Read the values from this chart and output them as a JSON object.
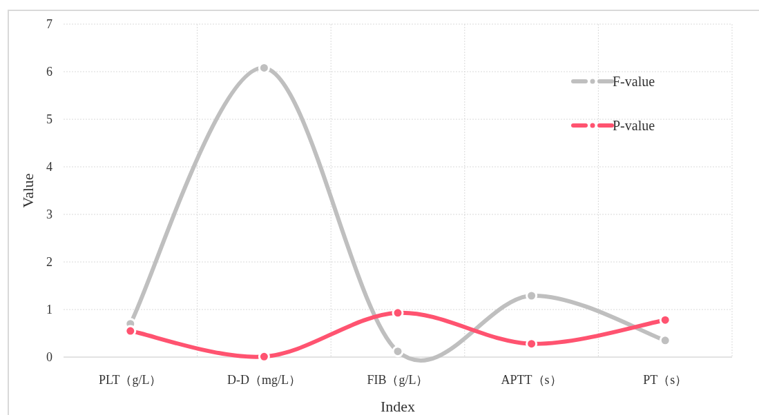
{
  "chart_data": {
    "type": "line",
    "xlabel": "Index",
    "ylabel": "Value",
    "categories": [
      "PLT（g/L）",
      "D-D（mg/L）",
      "FIB（g/L）",
      "APTT（s）",
      "PT（s）"
    ],
    "series": [
      {
        "name": "F-value",
        "color": "#bfbfbf",
        "values": [
          0.7,
          6.08,
          0.12,
          1.29,
          0.35
        ]
      },
      {
        "name": "P-value",
        "color": "#ff5370",
        "values": [
          0.55,
          0.01,
          0.93,
          0.28,
          0.78
        ]
      }
    ],
    "ylim": [
      0,
      7
    ],
    "yticks": [
      0,
      1,
      2,
      3,
      4,
      5,
      6,
      7
    ],
    "grid": true,
    "legend": "top right",
    "marker": "circle",
    "line_style": "solid"
  }
}
